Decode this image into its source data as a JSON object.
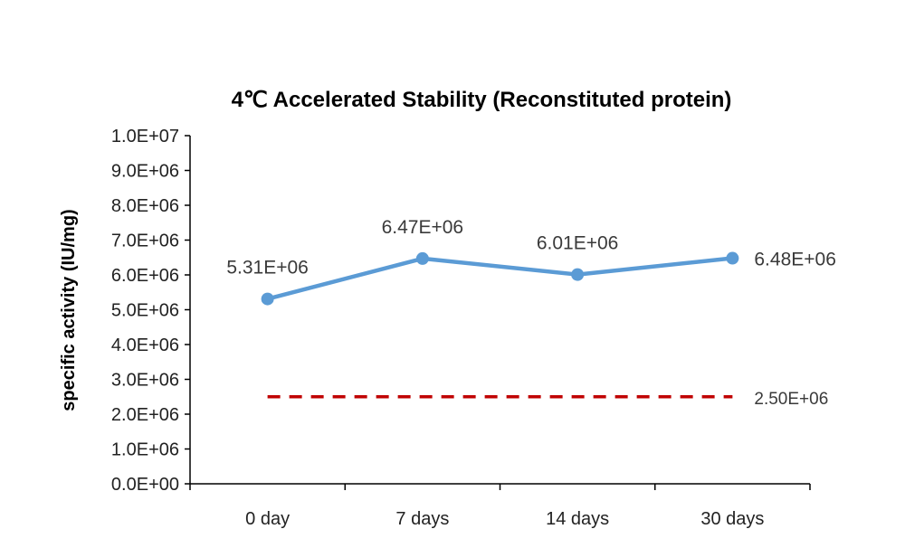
{
  "chart_data": {
    "type": "line",
    "title": "4℃ Accelerated  Stability (Reconstituted protein)",
    "xlabel": "",
    "ylabel": "specific activity (IU/mg)",
    "categories": [
      "0 day",
      "7 days",
      "14 days",
      "30 days"
    ],
    "ylim": [
      0,
      10000000
    ],
    "yticks": [
      "0.0E+00",
      "1.0E+06",
      "2.0E+06",
      "3.0E+06",
      "4.0E+06",
      "5.0E+06",
      "6.0E+06",
      "7.0E+06",
      "8.0E+06",
      "9.0E+06",
      "1.0E+07"
    ],
    "series": [
      {
        "values": [
          5310000,
          6470000,
          6010000,
          6480000
        ],
        "labels": [
          "5.31E+06",
          "6.47E+06",
          "6.01E+06",
          "6.48E+06"
        ],
        "color": "#5b9bd5"
      }
    ],
    "reference_line": {
      "value": 2500000,
      "label": "2.50E+06",
      "color": "#c00000",
      "style": "dashed"
    },
    "grid": false,
    "legend": "none"
  }
}
